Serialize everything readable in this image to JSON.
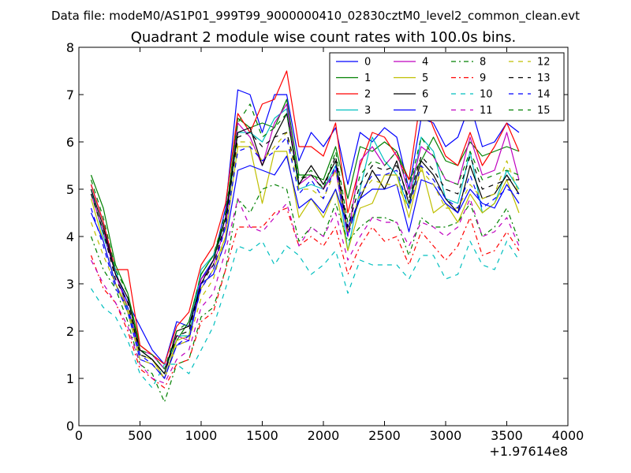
{
  "figure": {
    "suptitle": "Data file: modeM0/AS1P01_999T99_9000000410_02830cztM0_level2_common_clean.evt"
  },
  "chart_data": {
    "type": "line",
    "title": "Quadrant 2 module wise count rates with 100.0s bins.",
    "xlabel": "",
    "ylabel": "",
    "x_offset_label": "+1.97614e8",
    "xlim": [
      0,
      4000
    ],
    "ylim": [
      0,
      8
    ],
    "x_ticks": [
      0,
      500,
      1000,
      1500,
      2000,
      2500,
      3000,
      3500,
      4000
    ],
    "y_ticks": [
      0,
      1,
      2,
      3,
      4,
      5,
      6,
      7,
      8
    ],
    "grid": false,
    "legend_position": "top-right",
    "x": [
      100,
      200,
      300,
      400,
      500,
      600,
      700,
      800,
      900,
      1000,
      1100,
      1200,
      1300,
      1400,
      1500,
      1600,
      1700,
      1800,
      1900,
      2000,
      2100,
      2200,
      2300,
      2400,
      2500,
      2600,
      2700,
      2800,
      2900,
      3000,
      3100,
      3200,
      3300,
      3400,
      3500,
      3600
    ],
    "series": [
      {
        "name": "0",
        "color": "#0000ff",
        "dash": "solid",
        "values": [
          5.1,
          4.3,
          3.2,
          2.6,
          2.1,
          1.6,
          1.3,
          2.2,
          2.1,
          3.1,
          3.5,
          4.6,
          7.1,
          7.0,
          6.2,
          7.0,
          7.0,
          5.6,
          6.2,
          5.9,
          6.3,
          5.1,
          6.2,
          6.0,
          6.3,
          6.1,
          5.0,
          6.5,
          6.4,
          5.9,
          6.1,
          6.8,
          5.9,
          6.0,
          6.4,
          6.2
        ]
      },
      {
        "name": "1",
        "color": "#008000",
        "dash": "solid",
        "values": [
          5.3,
          4.6,
          3.4,
          2.8,
          1.7,
          1.5,
          1.2,
          1.8,
          2.2,
          3.2,
          3.6,
          4.4,
          6.5,
          6.3,
          6.4,
          6.3,
          6.9,
          5.3,
          5.3,
          5.2,
          5.9,
          4.8,
          5.9,
          5.8,
          6.0,
          5.8,
          5.2,
          5.6,
          6.1,
          5.6,
          5.5,
          6.0,
          5.7,
          5.8,
          5.9,
          5.8
        ]
      },
      {
        "name": "2",
        "color": "#ff0000",
        "dash": "solid",
        "values": [
          5.1,
          4.3,
          3.3,
          3.3,
          1.7,
          1.5,
          1.3,
          2.1,
          2.4,
          3.4,
          3.8,
          4.7,
          6.6,
          6.2,
          6.8,
          6.9,
          7.5,
          5.9,
          5.9,
          5.7,
          6.4,
          4.5,
          5.5,
          6.2,
          6.1,
          5.7,
          5.2,
          7.0,
          6.3,
          5.7,
          5.5,
          6.2,
          5.5,
          5.9,
          6.4,
          5.8
        ]
      },
      {
        "name": "3",
        "color": "#00bfbf",
        "dash": "solid",
        "values": [
          5.0,
          4.0,
          3.3,
          2.4,
          1.6,
          1.4,
          1.1,
          1.9,
          1.9,
          3.3,
          3.6,
          4.2,
          6.2,
          6.2,
          6.0,
          6.5,
          6.7,
          5.0,
          5.1,
          5.0,
          5.5,
          3.7,
          5.0,
          6.1,
          5.6,
          5.3,
          4.6,
          6.1,
          5.8,
          4.8,
          4.7,
          5.8,
          4.5,
          4.7,
          5.4,
          5.0
        ]
      },
      {
        "name": "4",
        "color": "#bf00bf",
        "dash": "solid",
        "values": [
          4.9,
          4.1,
          3.2,
          2.5,
          1.6,
          1.5,
          1.2,
          1.9,
          1.8,
          3.1,
          3.4,
          4.2,
          6.4,
          6.1,
          5.5,
          6.4,
          6.8,
          5.1,
          5.3,
          5.0,
          5.4,
          4.0,
          5.6,
          5.9,
          5.5,
          5.8,
          4.9,
          5.9,
          5.7,
          5.2,
          5.1,
          6.1,
          5.3,
          5.4,
          6.2,
          5.2
        ]
      },
      {
        "name": "5",
        "color": "#bfbf00",
        "dash": "solid",
        "values": [
          4.8,
          3.9,
          3.0,
          2.5,
          1.5,
          1.4,
          1.0,
          1.8,
          1.9,
          2.9,
          3.3,
          4.0,
          5.9,
          5.9,
          4.7,
          5.8,
          5.8,
          4.4,
          4.8,
          4.4,
          5.0,
          3.7,
          4.6,
          4.7,
          5.3,
          5.3,
          4.4,
          5.5,
          4.5,
          4.7,
          4.3,
          4.9,
          4.5,
          4.7,
          5.2,
          4.5
        ]
      },
      {
        "name": "6",
        "color": "#000000",
        "dash": "solid",
        "values": [
          5.0,
          4.2,
          3.2,
          2.7,
          1.6,
          1.4,
          1.1,
          2.0,
          2.1,
          3.0,
          3.5,
          4.4,
          6.2,
          6.3,
          5.5,
          6.1,
          6.6,
          5.1,
          5.5,
          5.1,
          5.6,
          4.1,
          4.8,
          5.4,
          5.0,
          5.6,
          4.7,
          5.6,
          5.3,
          4.8,
          4.5,
          5.5,
          4.8,
          4.9,
          5.3,
          4.9
        ]
      },
      {
        "name": "7",
        "color": "#0000ff",
        "dash": "solid",
        "values": [
          4.5,
          3.9,
          3.0,
          2.4,
          1.4,
          1.3,
          1.0,
          1.7,
          1.8,
          3.0,
          3.2,
          3.9,
          5.4,
          5.5,
          5.4,
          5.3,
          5.7,
          4.6,
          4.8,
          4.5,
          5.0,
          4.2,
          4.8,
          5.0,
          5.0,
          5.1,
          4.1,
          5.2,
          5.1,
          4.7,
          4.5,
          5.0,
          4.7,
          4.6,
          5.1,
          4.7
        ]
      },
      {
        "name": "8",
        "color": "#008000",
        "dash": "dashdot",
        "values": [
          4.0,
          3.3,
          2.9,
          2.2,
          1.3,
          1.1,
          0.5,
          1.3,
          1.4,
          2.3,
          2.5,
          3.3,
          4.8,
          4.5,
          5.0,
          5.1,
          5.0,
          3.9,
          4.2,
          4.0,
          4.7,
          3.9,
          4.2,
          4.4,
          4.4,
          4.3,
          3.6,
          4.4,
          4.2,
          4.2,
          4.3,
          4.7,
          4.0,
          4.2,
          4.6,
          3.9
        ]
      },
      {
        "name": "9",
        "color": "#ff0000",
        "dash": "dashdot",
        "values": [
          3.6,
          2.9,
          2.6,
          2.0,
          1.2,
          1.0,
          0.8,
          1.3,
          1.4,
          2.2,
          2.4,
          3.3,
          4.2,
          4.2,
          4.2,
          4.5,
          4.6,
          3.8,
          4.0,
          3.8,
          4.2,
          3.2,
          3.8,
          4.2,
          3.9,
          4.0,
          3.4,
          4.1,
          3.8,
          3.5,
          3.8,
          4.4,
          3.6,
          3.7,
          4.1,
          3.7
        ]
      },
      {
        "name": "10",
        "color": "#00bfbf",
        "dash": "dashed",
        "values": [
          2.9,
          2.5,
          2.3,
          1.8,
          1.1,
          0.8,
          1.3,
          1.3,
          1.1,
          1.6,
          2.1,
          2.9,
          3.8,
          3.7,
          3.9,
          3.4,
          3.8,
          3.6,
          3.2,
          3.4,
          3.7,
          2.8,
          3.5,
          3.4,
          3.4,
          3.4,
          3.1,
          3.6,
          3.6,
          3.1,
          3.2,
          3.9,
          3.4,
          3.3,
          3.9,
          3.5
        ]
      },
      {
        "name": "11",
        "color": "#bf00bf",
        "dash": "dashed",
        "values": [
          3.5,
          3.0,
          2.6,
          2.1,
          1.3,
          1.0,
          0.9,
          1.4,
          1.6,
          2.5,
          2.8,
          3.7,
          4.8,
          4.2,
          4.1,
          4.4,
          4.7,
          3.8,
          4.2,
          4.0,
          4.5,
          3.5,
          4.0,
          4.4,
          4.3,
          4.3,
          3.8,
          4.3,
          4.2,
          4.0,
          4.2,
          4.8,
          4.0,
          4.1,
          4.4,
          3.8
        ]
      },
      {
        "name": "12",
        "color": "#bfbf00",
        "dash": "dashed",
        "values": [
          4.3,
          3.6,
          3.0,
          2.4,
          1.4,
          1.3,
          1.0,
          1.7,
          1.8,
          2.7,
          3.1,
          4.0,
          6.0,
          6.0,
          5.6,
          5.9,
          6.2,
          5.0,
          5.0,
          4.8,
          5.4,
          4.1,
          4.9,
          5.2,
          5.1,
          5.1,
          4.6,
          5.4,
          5.1,
          4.6,
          4.6,
          5.1,
          4.8,
          4.9,
          5.6,
          4.9
        ]
      },
      {
        "name": "13",
        "color": "#000000",
        "dash": "dashed",
        "values": [
          4.9,
          4.1,
          3.1,
          2.6,
          1.5,
          1.4,
          1.1,
          1.9,
          2.0,
          3.0,
          3.4,
          4.3,
          6.1,
          6.2,
          5.9,
          6.1,
          6.2,
          5.2,
          5.3,
          5.0,
          5.7,
          4.2,
          5.1,
          5.5,
          5.4,
          5.5,
          4.8,
          5.7,
          5.4,
          5.0,
          4.9,
          5.7,
          5.0,
          5.1,
          5.2,
          5.2
        ]
      },
      {
        "name": "14",
        "color": "#0000ff",
        "dash": "dashed",
        "values": [
          4.6,
          3.8,
          2.9,
          2.5,
          1.5,
          1.3,
          1.0,
          1.7,
          1.9,
          2.9,
          3.3,
          4.2,
          5.8,
          5.9,
          5.6,
          5.8,
          6.1,
          4.9,
          5.2,
          4.8,
          5.5,
          4.0,
          4.9,
          5.3,
          5.3,
          5.4,
          4.6,
          5.5,
          5.2,
          4.8,
          4.6,
          5.3,
          4.6,
          4.8,
          5.0,
          4.9
        ]
      },
      {
        "name": "15",
        "color": "#008000",
        "dash": "dashed",
        "values": [
          5.2,
          4.4,
          3.3,
          2.8,
          1.6,
          1.5,
          1.2,
          2.0,
          2.2,
          3.2,
          3.6,
          4.5,
          6.4,
          6.8,
          6.1,
          6.3,
          6.6,
          5.2,
          5.4,
          5.0,
          5.8,
          4.3,
          5.3,
          5.6,
          5.5,
          5.8,
          5.0,
          6.1,
          5.7,
          5.2,
          5.1,
          5.8,
          5.2,
          5.3,
          5.4,
          5.3
        ]
      }
    ]
  }
}
